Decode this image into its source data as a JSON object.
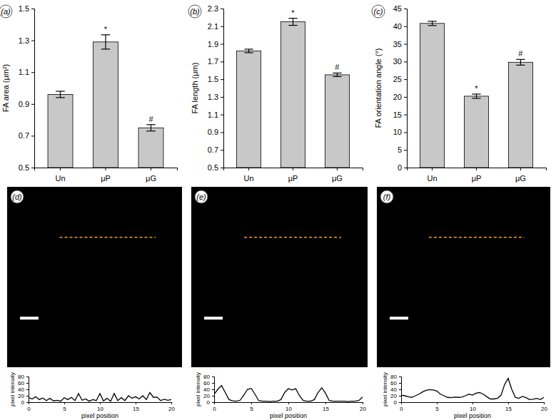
{
  "chart_data": [
    {
      "type": "bar",
      "title": "(a)",
      "y_label": "FA area (μm²)",
      "categories": [
        "Un",
        "μP",
        "μG"
      ],
      "values": [
        0.96,
        1.29,
        0.75
      ],
      "errors": [
        0.02,
        0.045,
        0.02
      ],
      "annotations": [
        null,
        "*",
        "#"
      ],
      "color": "#c8c8c8",
      "ylim": [
        0.5,
        1.5
      ],
      "yticks": [
        0.5,
        0.7,
        0.9,
        1.1,
        1.3,
        1.5
      ]
    },
    {
      "type": "bar",
      "title": "(b)",
      "y_label": "FA length (μm)",
      "categories": [
        "Un",
        "μP",
        "μG"
      ],
      "values": [
        1.82,
        2.15,
        1.55
      ],
      "errors": [
        0.02,
        0.04,
        0.02
      ],
      "annotations": [
        null,
        "*",
        "#"
      ],
      "color": "#c8c8c8",
      "ylim": [
        0.5,
        2.3
      ],
      "yticks": [
        0.5,
        0.7,
        0.9,
        1.1,
        1.3,
        1.5,
        1.7,
        1.9,
        2.1,
        2.3
      ]
    },
    {
      "type": "bar",
      "title": "(c)",
      "y_label": "FA orientation angle (°)",
      "categories": [
        "Un",
        "μP",
        "μG"
      ],
      "values": [
        40.8,
        20.2,
        29.8
      ],
      "errors": [
        0.6,
        0.6,
        0.8
      ],
      "annotations": [
        null,
        "*",
        "#"
      ],
      "color": "#c8c8c8",
      "ylim": [
        0,
        45
      ],
      "yticks": [
        0,
        5,
        10,
        15,
        20,
        25,
        30,
        35,
        40,
        45
      ]
    },
    {
      "type": "line",
      "title": "(d)",
      "x_label": "pixel position",
      "y_label": "pixel intensity",
      "color": "#000000",
      "x": [
        0,
        0.5,
        1,
        1.5,
        2,
        2.5,
        3,
        3.5,
        4,
        4.5,
        5,
        5.5,
        6,
        6.5,
        7,
        7.5,
        8,
        8.5,
        9,
        9.5,
        10,
        10.5,
        11,
        11.5,
        12,
        12.5,
        13,
        13.5,
        14,
        14.5,
        15,
        15.5,
        16,
        16.5,
        17,
        17.5,
        18,
        18.5,
        19,
        19.5,
        20
      ],
      "values": [
        15,
        10,
        17,
        8,
        13,
        5,
        12,
        4,
        6,
        3,
        14,
        8,
        15,
        5,
        27,
        6,
        10,
        3,
        8,
        5,
        27,
        4,
        12,
        3,
        27,
        5,
        14,
        5,
        20,
        12,
        17,
        10,
        20,
        8,
        30,
        15,
        16,
        5,
        9,
        6,
        8
      ],
      "xlim": [
        0,
        20
      ],
      "xticks": [
        0,
        5,
        10,
        15,
        20
      ],
      "ylim": [
        0,
        80
      ],
      "yticks": [
        0,
        20,
        40,
        60,
        80
      ]
    },
    {
      "type": "line",
      "title": "(e)",
      "x_label": "pixel position",
      "y_label": "pixel intensity",
      "color": "#000000",
      "x": [
        0,
        0.5,
        1,
        1.5,
        2,
        2.5,
        3,
        3.5,
        4,
        4.5,
        5,
        5.5,
        6,
        6.5,
        7,
        7.5,
        8,
        8.5,
        9,
        9.5,
        10,
        10.5,
        11,
        11.5,
        12,
        12.5,
        13,
        13.5,
        14,
        14.5,
        15,
        15.5,
        16,
        16.5,
        17,
        17.5,
        18,
        18.5,
        19,
        19.5,
        20
      ],
      "values": [
        25,
        40,
        52,
        30,
        8,
        4,
        3,
        6,
        22,
        40,
        43,
        25,
        5,
        3,
        3,
        2,
        3,
        3,
        8,
        30,
        42,
        38,
        42,
        20,
        5,
        3,
        3,
        8,
        30,
        45,
        28,
        5,
        3,
        3,
        3,
        3,
        2,
        3,
        3,
        5,
        16
      ],
      "xlim": [
        0,
        20
      ],
      "xticks": [
        0,
        5,
        10,
        15,
        20
      ],
      "ylim": [
        0,
        80
      ],
      "yticks": [
        0,
        20,
        40,
        60,
        80
      ]
    },
    {
      "type": "line",
      "title": "(f)",
      "x_label": "pixel position",
      "y_label": "pixel intensity",
      "color": "#000000",
      "x": [
        0,
        0.5,
        1,
        1.5,
        2,
        2.5,
        3,
        3.5,
        4,
        4.5,
        5,
        5.5,
        6,
        6.5,
        7,
        7.5,
        8,
        8.5,
        9,
        9.5,
        10,
        10.5,
        11,
        11.5,
        12,
        12.5,
        13,
        13.5,
        14,
        14.5,
        15,
        15.5,
        16,
        16.5,
        17,
        17.5,
        18,
        18.5,
        19,
        19.5,
        20
      ],
      "values": [
        22,
        20,
        17,
        15,
        20,
        25,
        32,
        37,
        39,
        38,
        35,
        25,
        20,
        15,
        14,
        16,
        15,
        16,
        20,
        25,
        22,
        28,
        30,
        25,
        17,
        10,
        10,
        12,
        22,
        55,
        74,
        40,
        15,
        12,
        18,
        14,
        8,
        9,
        12,
        8,
        15
      ],
      "xlim": [
        0,
        20
      ],
      "xticks": [
        0,
        5,
        10,
        15,
        20
      ],
      "ylim": [
        0,
        80
      ],
      "yticks": [
        0,
        20,
        40,
        60,
        80
      ]
    }
  ]
}
